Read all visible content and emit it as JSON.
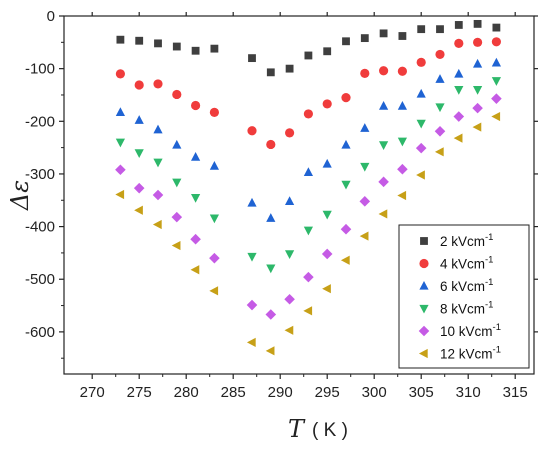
{
  "chart_data": {
    "type": "scatter",
    "xlabel": "T",
    "xunit": "( K )",
    "ylabel": "Δε",
    "xlim": [
      267,
      317
    ],
    "ylim": [
      -680,
      0
    ],
    "xticks": [
      "270",
      "275",
      "280",
      "285",
      "290",
      "295",
      "300",
      "305",
      "310",
      "315"
    ],
    "yticks": [
      "0",
      "-100",
      "-200",
      "-300",
      "-400",
      "-500",
      "-600"
    ],
    "legend_position": "bottom-right",
    "series": [
      {
        "name": "2  kVcm",
        "superscript": "-1",
        "marker": "square",
        "color": "#3f3f3f",
        "x": [
          273,
          275,
          277,
          279,
          281,
          283,
          287,
          289,
          291,
          293,
          295,
          297,
          299,
          301,
          303,
          305,
          307,
          309,
          311,
          313
        ],
        "y": [
          -45,
          -47,
          -52,
          -58,
          -66,
          -62,
          -80,
          -107,
          -100,
          -75,
          -67,
          -48,
          -42,
          -33,
          -38,
          -25,
          -25,
          -17,
          -15,
          -22
        ]
      },
      {
        "name": "4 kVcm",
        "superscript": "-1",
        "marker": "circle",
        "color": "#f03c3c",
        "x": [
          273,
          275,
          277,
          279,
          281,
          283,
          287,
          289,
          291,
          293,
          295,
          297,
          299,
          301,
          303,
          305,
          307,
          309,
          311,
          313
        ],
        "y": [
          -110,
          -131,
          -129,
          -149,
          -170,
          -183,
          -218,
          -244,
          -222,
          -186,
          -167,
          -155,
          -109,
          -104,
          -105,
          -88,
          -73,
          -52,
          -50,
          -49
        ]
      },
      {
        "name": "6 kVcm",
        "superscript": "-1",
        "marker": "triangle-up",
        "color": "#1f63d3",
        "x": [
          273,
          275,
          277,
          279,
          281,
          283,
          287,
          289,
          291,
          293,
          295,
          297,
          299,
          301,
          303,
          305,
          307,
          309,
          311,
          313
        ],
        "y": [
          -183,
          -198,
          -216,
          -245,
          -268,
          -285,
          -355,
          -384,
          -352,
          -297,
          -281,
          -245,
          -213,
          -171,
          -171,
          -148,
          -120,
          -110,
          -91,
          -89
        ]
      },
      {
        "name": "8 kVcm",
        "superscript": "-1",
        "marker": "triangle-down",
        "color": "#2db86a",
        "x": [
          273,
          275,
          277,
          279,
          281,
          283,
          287,
          289,
          291,
          293,
          295,
          297,
          299,
          301,
          303,
          305,
          307,
          309,
          311,
          313
        ],
        "y": [
          -240,
          -260,
          -278,
          -316,
          -345,
          -384,
          -457,
          -479,
          -452,
          -407,
          -377,
          -320,
          -286,
          -245,
          -238,
          -204,
          -173,
          -140,
          -140,
          -123
        ]
      },
      {
        "name": "10 kVcm",
        "superscript": "-1",
        "marker": "diamond",
        "color": "#c55be5",
        "x": [
          273,
          275,
          277,
          279,
          281,
          283,
          287,
          289,
          291,
          293,
          295,
          297,
          299,
          301,
          303,
          305,
          307,
          309,
          311,
          313
        ],
        "y": [
          -292,
          -327,
          -340,
          -382,
          -424,
          -460,
          -549,
          -567,
          -538,
          -496,
          -452,
          -405,
          -352,
          -315,
          -291,
          -251,
          -219,
          -191,
          -175,
          -157
        ]
      },
      {
        "name": "12 kVcm",
        "superscript": "-1",
        "marker": "triangle-left",
        "color": "#c7a017",
        "x": [
          273,
          275,
          277,
          279,
          281,
          283,
          287,
          289,
          291,
          293,
          295,
          297,
          299,
          301,
          303,
          305,
          307,
          309,
          311,
          313
        ],
        "y": [
          -339,
          -369,
          -396,
          -436,
          -482,
          -522,
          -620,
          -636,
          -597,
          -560,
          -518,
          -464,
          -418,
          -376,
          -341,
          -302,
          -258,
          -232,
          -211,
          -191
        ]
      }
    ]
  }
}
